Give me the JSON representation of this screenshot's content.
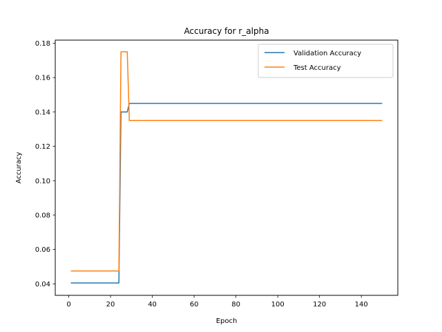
{
  "chart_data": {
    "type": "line",
    "title": "Accuracy for r_alpha",
    "xlabel": "Epoch",
    "ylabel": "Accuracy",
    "xlim": [
      -6.45,
      157.45
    ],
    "ylim": [
      0.0333,
      0.1818
    ],
    "xticks": [
      0,
      20,
      40,
      60,
      80,
      100,
      120,
      140
    ],
    "xtick_labels": [
      "0",
      "20",
      "40",
      "60",
      "80",
      "100",
      "120",
      "140"
    ],
    "yticks": [
      0.04,
      0.06,
      0.08,
      0.1,
      0.12,
      0.14,
      0.16,
      0.18
    ],
    "ytick_labels": [
      "0.04",
      "0.06",
      "0.08",
      "0.10",
      "0.12",
      "0.14",
      "0.16",
      "0.18"
    ],
    "grid": false,
    "legend_position": "top-right",
    "series": [
      {
        "name": "Validation Accuracy",
        "color": "#1f77b4",
        "x": [
          1,
          24,
          25,
          28,
          29,
          150
        ],
        "y": [
          0.0405,
          0.0405,
          0.14,
          0.14,
          0.145,
          0.145
        ]
      },
      {
        "name": "Test Accuracy",
        "color": "#ff7f0e",
        "x": [
          1,
          24,
          25,
          28,
          29,
          150
        ],
        "y": [
          0.0475,
          0.0475,
          0.175,
          0.175,
          0.135,
          0.135
        ]
      }
    ]
  }
}
